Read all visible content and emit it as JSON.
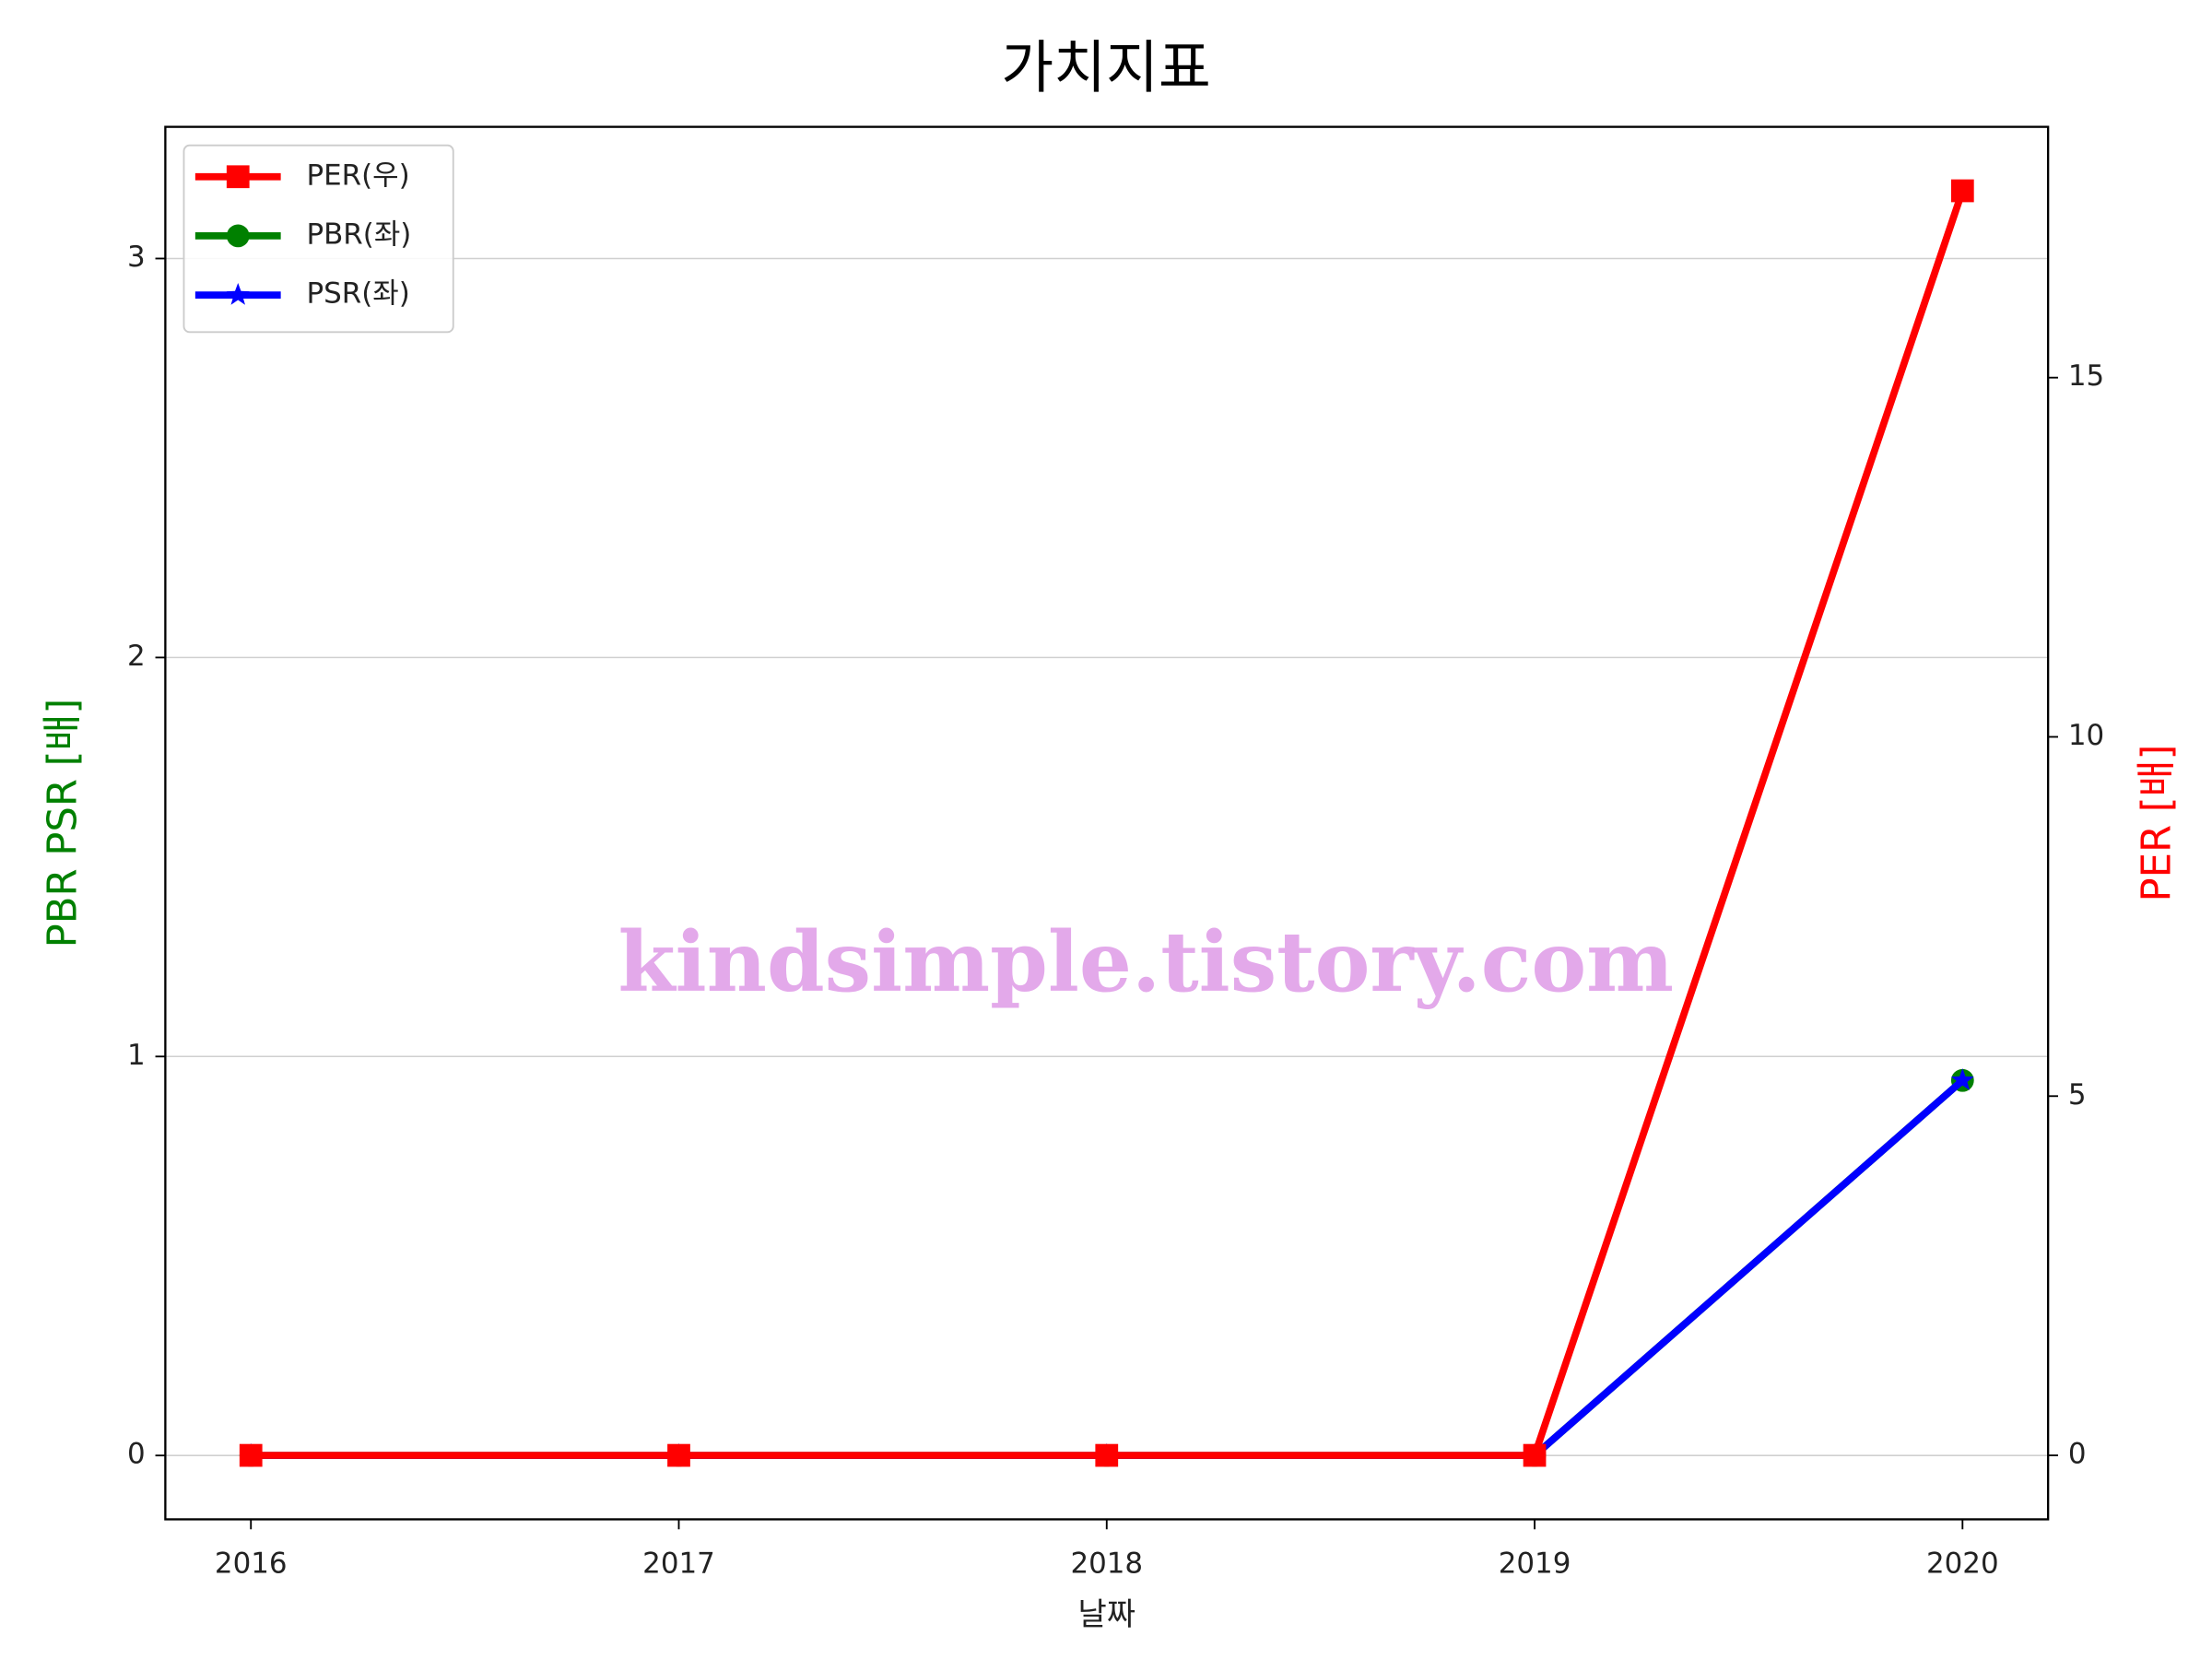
{
  "chart_data": {
    "type": "line",
    "title": "가치지표",
    "x_label": "날짜",
    "y_label": "PBR PSR [배]",
    "y2_label": "PER [배]",
    "y_label_color": "green",
    "y2_label_color": "red",
    "watermark": "kindsimple.tistory.com",
    "x": [
      2016,
      2017,
      2018,
      2019,
      2020
    ],
    "xlim": [
      2015.8,
      2020.2
    ],
    "xticks": [
      2016,
      2017,
      2018,
      2019,
      2020
    ],
    "ylim": [
      -0.16,
      3.33
    ],
    "yticks": [
      0,
      1,
      2,
      3
    ],
    "y2lim": [
      -0.89,
      18.49
    ],
    "y2ticks": [
      0,
      5,
      10,
      15
    ],
    "grid": true,
    "legend": "upper left",
    "series": [
      {
        "name": "PER(우)",
        "color": "#ff0000",
        "marker": "square",
        "axis": "y2",
        "values": [
          0,
          0,
          0,
          0,
          17.6
        ]
      },
      {
        "name": "PBR(좌)",
        "color": "#008000",
        "marker": "circle",
        "values": [
          0,
          0,
          0,
          0,
          0.94
        ]
      },
      {
        "name": "PSR(좌)",
        "color": "#0000ff",
        "marker": "star",
        "values": [
          0,
          0,
          0,
          0,
          0.94
        ]
      }
    ]
  }
}
